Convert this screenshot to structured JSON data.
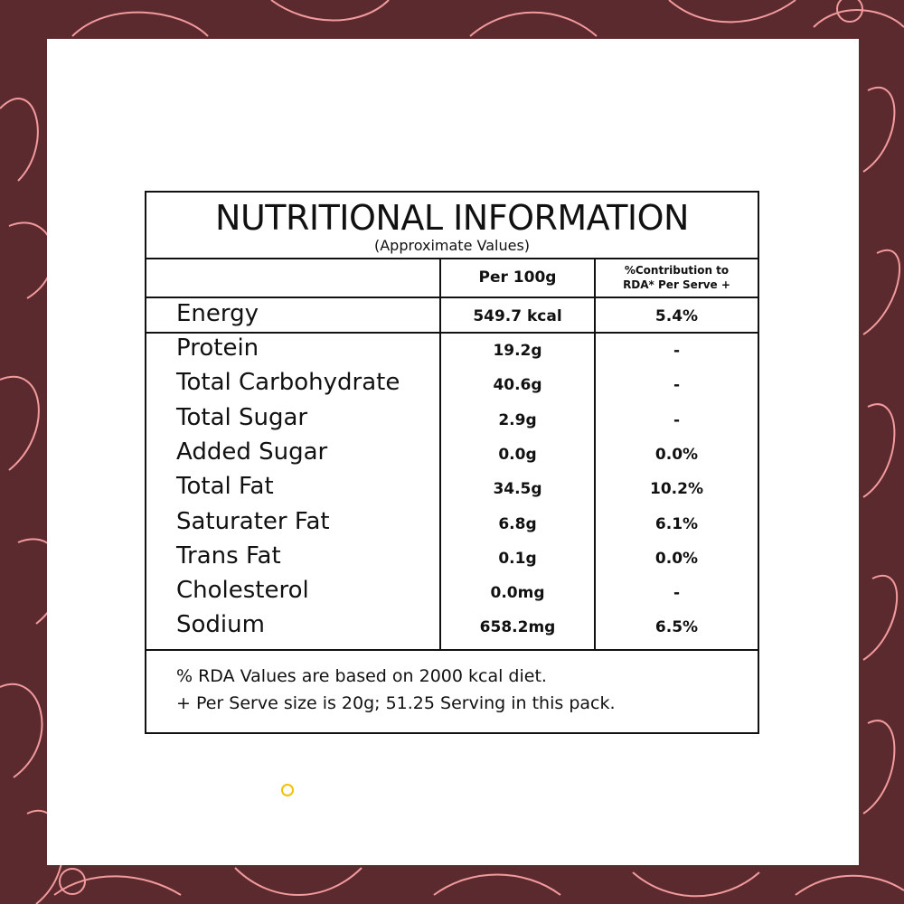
{
  "table": {
    "title": "NUTRITIONAL INFORMATION",
    "subtitle": "(Approximate Values)",
    "columns": [
      "Per 100g",
      [
        "%Contribution to",
        "RDA* Per Serve +"
      ]
    ],
    "rows": [
      [
        "Energy",
        "549.7 kcal",
        "5.4%"
      ],
      [
        "Protein",
        "19.2g",
        "-"
      ],
      [
        "Total Carbohydrate",
        "40.6g",
        "-"
      ],
      [
        "Total Sugar",
        "2.9g",
        "-"
      ],
      [
        "Added Sugar",
        "0.0g",
        "0.0%"
      ],
      [
        "Total Fat",
        "34.5g",
        "10.2%"
      ],
      [
        "Saturater Fat",
        "6.8g",
        "6.1%"
      ],
      [
        "Trans Fat",
        "0.1g",
        "0.0%"
      ],
      [
        "Cholesterol",
        "0.0mg",
        "-"
      ],
      [
        "Sodium",
        "658.2mg",
        "6.5%"
      ]
    ],
    "footnotes": [
      "% RDA Values are based on 2000 kcal diet.",
      "+ Per Serve size is 20g; 51.25 Serving in this pack."
    ]
  }
}
